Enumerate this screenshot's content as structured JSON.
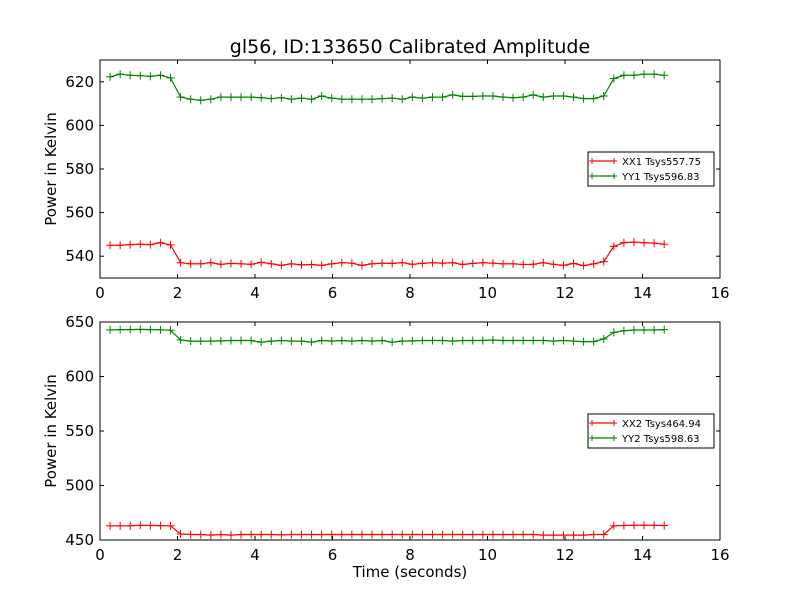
{
  "chart_data": [
    {
      "type": "line",
      "title": "gl56, ID:133650 Calibrated Amplitude",
      "xlabel": "",
      "ylabel": "Power in Kelvin",
      "xlim": [
        0,
        16
      ],
      "ylim": [
        530,
        630
      ],
      "xticks": [
        0,
        2,
        4,
        6,
        8,
        10,
        12,
        14,
        16
      ],
      "yticks": [
        540,
        560,
        580,
        600,
        620
      ],
      "grid": false,
      "legend": "right",
      "x": [
        0.26,
        0.52,
        0.78,
        1.04,
        1.3,
        1.56,
        1.82,
        2.08,
        2.34,
        2.6,
        2.86,
        3.12,
        3.38,
        3.64,
        3.9,
        4.16,
        4.42,
        4.68,
        4.94,
        5.2,
        5.46,
        5.72,
        5.98,
        6.24,
        6.5,
        6.76,
        7.02,
        7.28,
        7.54,
        7.8,
        8.06,
        8.32,
        8.58,
        8.84,
        9.1,
        9.36,
        9.62,
        9.88,
        10.14,
        10.4,
        10.66,
        10.92,
        11.18,
        11.44,
        11.7,
        11.96,
        12.22,
        12.48,
        12.74,
        13.0,
        13.26,
        13.52,
        13.78,
        14.04,
        14.3,
        14.56
      ],
      "series": [
        {
          "name": "XX1 Tsys557.75",
          "color": "#ff0000",
          "values": [
            545,
            545,
            545.3,
            545.5,
            545.3,
            546.2,
            545.2,
            537,
            536.5,
            536.5,
            537,
            536.3,
            536.7,
            536.5,
            536.3,
            537.2,
            536.5,
            535.8,
            536.5,
            536,
            536.2,
            535.8,
            536.5,
            537,
            536.8,
            535.8,
            536.5,
            536.8,
            536.7,
            537,
            536.3,
            536.7,
            537,
            536.8,
            537,
            536.2,
            536.7,
            537,
            536.8,
            536.5,
            536.5,
            536.2,
            536.3,
            537,
            536.3,
            535.8,
            536.7,
            535.7,
            536.5,
            537.5,
            544.5,
            546.2,
            546.5,
            546.2,
            546,
            545.5
          ]
        },
        {
          "name": "YY1 Tsys596.83",
          "color": "#008000",
          "values": [
            622.3,
            623.5,
            623,
            622.8,
            622.5,
            623,
            621.8,
            613,
            612,
            611.5,
            612,
            613,
            613,
            613,
            613,
            612.7,
            612.3,
            612.7,
            612,
            612.5,
            612,
            613.5,
            612.5,
            612,
            612,
            612,
            612,
            612.3,
            612.5,
            612,
            613,
            612.5,
            613,
            613,
            614,
            613.3,
            613.3,
            613.5,
            613.5,
            613,
            612.7,
            613,
            614,
            613,
            613.5,
            613.5,
            613,
            612.3,
            612.3,
            613.5,
            621.5,
            623,
            623,
            623.5,
            623.5,
            623
          ]
        }
      ]
    },
    {
      "type": "line",
      "title": "",
      "xlabel": "Time (seconds)",
      "ylabel": "Power in Kelvin",
      "xlim": [
        0,
        16
      ],
      "ylim": [
        450,
        650
      ],
      "xticks": [
        0,
        2,
        4,
        6,
        8,
        10,
        12,
        14,
        16
      ],
      "yticks": [
        450,
        500,
        550,
        600,
        650
      ],
      "grid": false,
      "legend": "right",
      "x": [
        0.26,
        0.52,
        0.78,
        1.04,
        1.3,
        1.56,
        1.82,
        2.08,
        2.34,
        2.6,
        2.86,
        3.12,
        3.38,
        3.64,
        3.9,
        4.16,
        4.42,
        4.68,
        4.94,
        5.2,
        5.46,
        5.72,
        5.98,
        6.24,
        6.5,
        6.76,
        7.02,
        7.28,
        7.54,
        7.8,
        8.06,
        8.32,
        8.58,
        8.84,
        9.1,
        9.36,
        9.62,
        9.88,
        10.14,
        10.4,
        10.66,
        10.92,
        11.18,
        11.44,
        11.7,
        11.96,
        12.22,
        12.48,
        12.74,
        13.0,
        13.26,
        13.52,
        13.78,
        14.04,
        14.3,
        14.56
      ],
      "series": [
        {
          "name": "XX2 Tsys464.94",
          "color": "#ff0000",
          "values": [
            463,
            463,
            463,
            463.5,
            463.3,
            463.2,
            463,
            455.5,
            455,
            455,
            454.5,
            455,
            454.5,
            455,
            455,
            455,
            455,
            454.7,
            455,
            455,
            455,
            455,
            455,
            455,
            455,
            455,
            455,
            455,
            455,
            455,
            455,
            455,
            455,
            455,
            455,
            455,
            455,
            455,
            455,
            455,
            455,
            455,
            455,
            454.5,
            454.5,
            454.5,
            454.5,
            454.5,
            455,
            455,
            463,
            463.3,
            463.5,
            463.5,
            463.5,
            463.3
          ]
        },
        {
          "name": "YY2 Tsys598.63",
          "color": "#008000",
          "values": [
            642.7,
            643,
            643,
            643.2,
            643,
            642.8,
            642.5,
            633.5,
            632.5,
            632.5,
            632.5,
            632.7,
            633,
            633,
            633,
            631.5,
            632.5,
            633,
            632.5,
            632.5,
            631.5,
            633,
            632.5,
            633,
            632.5,
            633,
            632.5,
            633,
            631.5,
            632.5,
            632.7,
            633,
            633,
            633,
            632.5,
            633,
            633,
            633,
            633.5,
            633,
            633,
            633,
            633,
            633,
            632.5,
            633,
            632.5,
            632,
            632,
            634.5,
            640.5,
            642,
            642.7,
            642.7,
            642.7,
            643
          ]
        }
      ]
    }
  ]
}
